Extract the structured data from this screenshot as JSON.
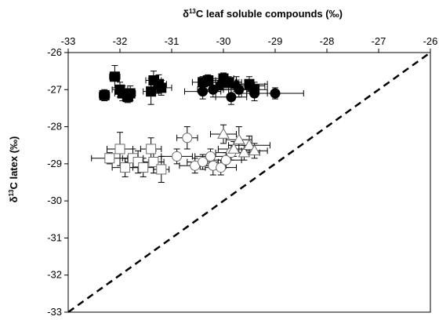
{
  "chart_data": {
    "type": "scatter",
    "xlabel_parts": [
      "δ",
      "13",
      "C leaf soluble compounds (‰)"
    ],
    "ylabel_parts": [
      "δ",
      "13",
      "C latex (‰)"
    ],
    "xlim": [
      -33,
      -26
    ],
    "ylim": [
      -33,
      -26
    ],
    "x_ticks": [
      -33,
      -32,
      -31,
      -30,
      -29,
      -28,
      -27,
      -26
    ],
    "y_ticks": [
      -33,
      -32,
      -31,
      -30,
      -29,
      -28,
      -27,
      -26
    ],
    "x_axis_position": "top",
    "grid": false,
    "reference_line": {
      "style": "dashed",
      "from": [
        -33,
        -33
      ],
      "to": [
        -26,
        -26
      ]
    },
    "series": [
      {
        "marker": "square",
        "fill": "#000000",
        "points": [
          {
            "x": -32.3,
            "y": -27.15,
            "xerr": 0.1,
            "yerr": 0.15
          },
          {
            "x": -32.1,
            "y": -26.65,
            "xerr": 0.1,
            "yerr": 0.3
          },
          {
            "x": -32.0,
            "y": -27.0,
            "xerr": 0.15,
            "yerr": 0.2
          },
          {
            "x": -31.95,
            "y": -27.1,
            "xerr": 0.15,
            "yerr": 0.2
          },
          {
            "x": -31.85,
            "y": -27.2,
            "xerr": 0.1,
            "yerr": 0.15
          },
          {
            "x": -31.8,
            "y": -27.1,
            "xerr": 0.1,
            "yerr": 0.2
          },
          {
            "x": -31.4,
            "y": -27.05,
            "xerr": 0.15,
            "yerr": 0.35
          },
          {
            "x": -31.35,
            "y": -26.75,
            "xerr": 0.15,
            "yerr": 0.25
          },
          {
            "x": -31.25,
            "y": -26.85,
            "xerr": 0.15,
            "yerr": 0.25
          },
          {
            "x": -31.2,
            "y": -26.95,
            "xerr": 0.2,
            "yerr": 0.2
          },
          {
            "x": -30.4,
            "y": -26.8,
            "xerr": 0.2,
            "yerr": 0.15
          },
          {
            "x": -30.3,
            "y": -26.75,
            "xerr": 0.15,
            "yerr": 0.15
          },
          {
            "x": -30.0,
            "y": -26.7,
            "xerr": 0.2,
            "yerr": 0.15
          },
          {
            "x": -29.9,
            "y": -26.8,
            "xerr": 0.25,
            "yerr": 0.15
          },
          {
            "x": -29.5,
            "y": -26.85,
            "xerr": 0.35,
            "yerr": 0.2
          },
          {
            "x": -29.4,
            "y": -27.0,
            "xerr": 0.25,
            "yerr": 0.2
          }
        ]
      },
      {
        "marker": "circle",
        "fill": "#000000",
        "points": [
          {
            "x": -30.4,
            "y": -27.05,
            "xerr": 0.35,
            "yerr": 0.2
          },
          {
            "x": -30.2,
            "y": -27.0,
            "xerr": 0.3,
            "yerr": 0.2
          },
          {
            "x": -30.0,
            "y": -26.8,
            "xerr": 0.3,
            "yerr": 0.15
          },
          {
            "x": -29.85,
            "y": -27.2,
            "xerr": 0.3,
            "yerr": 0.2
          },
          {
            "x": -29.7,
            "y": -27.0,
            "xerr": 0.3,
            "yerr": 0.2
          },
          {
            "x": -29.5,
            "y": -26.9,
            "xerr": 0.3,
            "yerr": 0.15
          },
          {
            "x": -29.4,
            "y": -27.1,
            "xerr": 0.25,
            "yerr": 0.2
          },
          {
            "x": -29.0,
            "y": -27.1,
            "xerr": 0.55,
            "yerr": 0.15
          }
        ]
      },
      {
        "marker": "triangle",
        "fill": "#000000",
        "points": [
          {
            "x": -30.1,
            "y": -26.9,
            "xerr": 0.25,
            "yerr": 0.15
          },
          {
            "x": -29.75,
            "y": -26.85,
            "xerr": 0.25,
            "yerr": 0.2
          }
        ]
      },
      {
        "marker": "square",
        "fill": "#ffffff",
        "points": [
          {
            "x": -32.2,
            "y": -28.85,
            "xerr": 0.35,
            "yerr": 0.15
          },
          {
            "x": -32.0,
            "y": -28.6,
            "xerr": 0.25,
            "yerr": 0.45
          },
          {
            "x": -31.9,
            "y": -29.1,
            "xerr": 0.25,
            "yerr": 0.25
          },
          {
            "x": -31.75,
            "y": -28.85,
            "xerr": 0.2,
            "yerr": 0.25
          },
          {
            "x": -31.65,
            "y": -28.95,
            "xerr": 0.25,
            "yerr": 0.3
          },
          {
            "x": -31.55,
            "y": -29.1,
            "xerr": 0.2,
            "yerr": 0.25
          },
          {
            "x": -31.4,
            "y": -28.6,
            "xerr": 0.2,
            "yerr": 0.3
          },
          {
            "x": -31.35,
            "y": -28.95,
            "xerr": 0.2,
            "yerr": 0.3
          },
          {
            "x": -31.2,
            "y": -29.15,
            "xerr": 0.15,
            "yerr": 0.35
          }
        ]
      },
      {
        "marker": "circle",
        "fill": "#ffffff",
        "points": [
          {
            "x": -30.9,
            "y": -28.8,
            "xerr": 0.3,
            "yerr": 0.2
          },
          {
            "x": -30.7,
            "y": -28.3,
            "xerr": 0.2,
            "yerr": 0.3
          },
          {
            "x": -30.55,
            "y": -29.05,
            "xerr": 0.3,
            "yerr": 0.2
          },
          {
            "x": -30.4,
            "y": -28.95,
            "xerr": 0.3,
            "yerr": 0.2
          },
          {
            "x": -30.25,
            "y": -28.8,
            "xerr": 0.3,
            "yerr": 0.2
          },
          {
            "x": -30.2,
            "y": -29.05,
            "xerr": 0.25,
            "yerr": 0.25
          },
          {
            "x": -30.05,
            "y": -29.1,
            "xerr": 0.3,
            "yerr": 0.2
          },
          {
            "x": -29.95,
            "y": -28.9,
            "xerr": 0.3,
            "yerr": 0.2
          },
          {
            "x": -29.85,
            "y": -28.7,
            "xerr": 0.3,
            "yerr": 0.2
          }
        ]
      },
      {
        "marker": "triangle",
        "fill": "#ffffff",
        "points": [
          {
            "x": -30.0,
            "y": -28.2,
            "xerr": 0.25,
            "yerr": 0.25
          },
          {
            "x": -29.8,
            "y": -28.6,
            "xerr": 0.3,
            "yerr": 0.2
          },
          {
            "x": -29.7,
            "y": -28.35,
            "xerr": 0.25,
            "yerr": 0.35
          },
          {
            "x": -29.6,
            "y": -28.7,
            "xerr": 0.3,
            "yerr": 0.2
          },
          {
            "x": -29.5,
            "y": -28.5,
            "xerr": 0.4,
            "yerr": 0.25
          },
          {
            "x": -29.4,
            "y": -28.65,
            "xerr": 0.25,
            "yerr": 0.2
          }
        ]
      }
    ]
  }
}
